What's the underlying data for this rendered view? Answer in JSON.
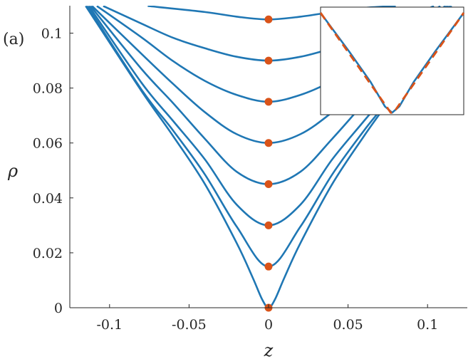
{
  "panel_label": "(a)",
  "chart_data": {
    "type": "line",
    "title": "",
    "xlabel": "z",
    "ylabel": "ρ",
    "xlim": [
      -0.125,
      0.125
    ],
    "ylim": [
      0,
      0.11
    ],
    "xticks": [
      -0.1,
      -0.05,
      0,
      0.05,
      0.1
    ],
    "xtick_labels": [
      "-0.1",
      "-0.05",
      "0",
      "0.05",
      "0.1"
    ],
    "yticks": [
      0,
      0.02,
      0.04,
      0.06,
      0.08,
      0.1
    ],
    "ytick_labels": [
      "0",
      "0.02",
      "0.04",
      "0.06",
      "0.08",
      "0.1"
    ],
    "grid": false,
    "line_color": "#1f77b4",
    "marker_color": "#d95319",
    "series": [
      {
        "rho0": 0.105,
        "points": [
          [
            -0.076,
            0.1099
          ],
          [
            -0.04,
            0.1077
          ],
          [
            -0.02,
            0.106
          ],
          [
            0,
            0.105
          ],
          [
            0.02,
            0.106
          ],
          [
            0.04,
            0.1077
          ],
          [
            0.06,
            0.1092
          ],
          [
            0.08,
            0.1099
          ]
        ]
      },
      {
        "rho0": 0.09,
        "points": [
          [
            -0.104,
            0.1099
          ],
          [
            -0.08,
            0.1035
          ],
          [
            -0.06,
            0.0983
          ],
          [
            -0.04,
            0.0945
          ],
          [
            -0.02,
            0.0914
          ],
          [
            0,
            0.09
          ],
          [
            0.02,
            0.0914
          ],
          [
            0.04,
            0.0945
          ],
          [
            0.06,
            0.0983
          ],
          [
            0.08,
            0.1035
          ],
          [
            0.104,
            0.1099
          ]
        ]
      },
      {
        "rho0": 0.075,
        "points": [
          [
            -0.108,
            0.1099
          ],
          [
            -0.08,
            0.0985
          ],
          [
            -0.06,
            0.0898
          ],
          [
            -0.04,
            0.0826
          ],
          [
            -0.02,
            0.0775
          ],
          [
            0,
            0.075
          ],
          [
            0.02,
            0.0775
          ],
          [
            0.04,
            0.0826
          ],
          [
            0.06,
            0.0898
          ],
          [
            0.08,
            0.0985
          ],
          [
            0.108,
            0.1099
          ]
        ]
      },
      {
        "rho0": 0.06,
        "points": [
          [
            -0.111,
            0.1099
          ],
          [
            -0.08,
            0.0925
          ],
          [
            -0.06,
            0.0815
          ],
          [
            -0.04,
            0.0712
          ],
          [
            -0.02,
            0.0632
          ],
          [
            0,
            0.06
          ],
          [
            0.02,
            0.0632
          ],
          [
            0.04,
            0.0712
          ],
          [
            0.06,
            0.0815
          ],
          [
            0.08,
            0.0925
          ],
          [
            0.111,
            0.1099
          ]
        ]
      },
      {
        "rho0": 0.045,
        "points": [
          [
            -0.112,
            0.1099
          ],
          [
            -0.08,
            0.087
          ],
          [
            -0.06,
            0.0745
          ],
          [
            -0.04,
            0.0615
          ],
          [
            -0.02,
            0.0495
          ],
          [
            0,
            0.045
          ],
          [
            0.02,
            0.0495
          ],
          [
            0.04,
            0.0615
          ],
          [
            0.06,
            0.0745
          ],
          [
            0.08,
            0.087
          ],
          [
            0.112,
            0.1099
          ]
        ]
      },
      {
        "rho0": 0.03,
        "points": [
          [
            -0.113,
            0.1099
          ],
          [
            -0.08,
            0.082
          ],
          [
            -0.06,
            0.068
          ],
          [
            -0.04,
            0.054
          ],
          [
            -0.02,
            0.0375
          ],
          [
            0,
            0.03
          ],
          [
            0.02,
            0.0375
          ],
          [
            0.04,
            0.054
          ],
          [
            0.06,
            0.068
          ],
          [
            0.08,
            0.082
          ],
          [
            0.113,
            0.1099
          ]
        ]
      },
      {
        "rho0": 0.015,
        "points": [
          [
            -0.114,
            0.1099
          ],
          [
            -0.08,
            0.0795
          ],
          [
            -0.06,
            0.0645
          ],
          [
            -0.04,
            0.0485
          ],
          [
            -0.02,
            0.0295
          ],
          [
            0,
            0.015
          ],
          [
            0.02,
            0.0295
          ],
          [
            0.04,
            0.0485
          ],
          [
            0.06,
            0.0645
          ],
          [
            0.08,
            0.0795
          ],
          [
            0.114,
            0.1099
          ]
        ]
      },
      {
        "rho0": 0.0,
        "points": [
          [
            -0.115,
            0.1099
          ],
          [
            -0.08,
            0.079
          ],
          [
            -0.06,
            0.0625
          ],
          [
            -0.04,
            0.045
          ],
          [
            -0.02,
            0.0235
          ],
          [
            -0.01,
            0.011
          ],
          [
            -0.004,
            0.003
          ],
          [
            0,
            0.0
          ],
          [
            0.004,
            0.003
          ],
          [
            0.01,
            0.011
          ],
          [
            0.02,
            0.0235
          ],
          [
            0.04,
            0.045
          ],
          [
            0.06,
            0.0625
          ],
          [
            0.08,
            0.079
          ],
          [
            0.115,
            0.1099
          ]
        ]
      }
    ],
    "markers": {
      "x": [
        0,
        0,
        0,
        0,
        0,
        0,
        0,
        0
      ],
      "y": [
        0,
        0.015,
        0.03,
        0.045,
        0.06,
        0.075,
        0.09,
        0.105
      ]
    },
    "inset": {
      "solid_line_color": "#1f77b4",
      "dashed_line_color": "#d95319",
      "xlim": [
        -1,
        1
      ],
      "ylim": [
        0,
        1
      ],
      "solid_points": [
        [
          -1,
          1.0
        ],
        [
          -0.6,
          0.62
        ],
        [
          -0.3,
          0.32
        ],
        [
          -0.1,
          0.08
        ],
        [
          0,
          0.02
        ],
        [
          0.1,
          0.08
        ],
        [
          0.3,
          0.32
        ],
        [
          0.6,
          0.62
        ],
        [
          1,
          1.0
        ]
      ],
      "dashed_points": [
        [
          -1,
          1.0
        ],
        [
          -0.02,
          0.02
        ],
        [
          0.02,
          0.02
        ],
        [
          1,
          1.0
        ]
      ]
    }
  }
}
